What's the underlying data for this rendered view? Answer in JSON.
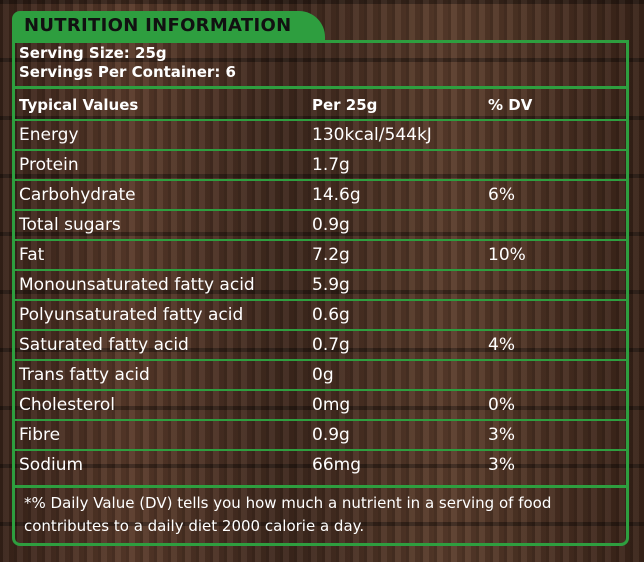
{
  "title": "NUTRITION INFORMATION",
  "serving_size": "Serving Size: 25g",
  "servings_per_container": "Servings Per Container: 6",
  "columns": [
    "Typical Values",
    "Per 25g",
    "% DV"
  ],
  "rows": [
    {
      "name": "Energy",
      "per": "130kcal/544kJ",
      "dv": ""
    },
    {
      "name": "Protein",
      "per": "1.7g",
      "dv": ""
    },
    {
      "name": "Carbohydrate",
      "per": "14.6g",
      "dv": "6%"
    },
    {
      "name": "Total sugars",
      "per": "0.9g",
      "dv": ""
    },
    {
      "name": "Fat",
      "per": "7.2g",
      "dv": "10%"
    },
    {
      "name": "Monounsaturated fatty acid",
      "per": "5.9g",
      "dv": ""
    },
    {
      "name": "Polyunsaturated fatty acid",
      "per": "0.6g",
      "dv": ""
    },
    {
      "name": "Saturated fatty acid",
      "per": "0.7g",
      "dv": "4%"
    },
    {
      "name": "Trans fatty acid",
      "per": "0g",
      "dv": ""
    },
    {
      "name": "Cholesterol",
      "per": "0mg",
      "dv": "0%"
    },
    {
      "name": "Fibre",
      "per": "0.9g",
      "dv": "3%"
    },
    {
      "name": "Sodium",
      "per": "66mg",
      "dv": "3%"
    }
  ],
  "footnote": "*% Daily Value (DV) tells you how much a nutrient in a serving of food contributes to a daily diet 2000 calorie a day.",
  "colors": {
    "accent": "#2e9e3f",
    "text": "#ffffff",
    "title_text": "#111111"
  }
}
